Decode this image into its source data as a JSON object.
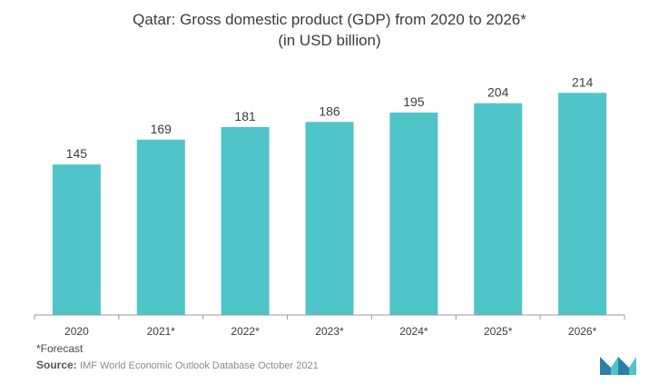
{
  "chart_data": {
    "type": "bar",
    "title": "Qatar: Gross domestic product (GDP) from 2020 to 2026*",
    "subtitle": "(in USD billion)",
    "categories": [
      "2020",
      "2021*",
      "2022*",
      "2023*",
      "2024*",
      "2025*",
      "2026*"
    ],
    "values": [
      145,
      169,
      181,
      186,
      195,
      204,
      214
    ],
    "data_labels": [
      "145",
      "169",
      "181",
      "186",
      "195",
      "204",
      "214"
    ],
    "ylim": [
      0,
      230
    ],
    "grid": false,
    "legend": "none",
    "colors": {
      "bar": "#4fc4c9",
      "axis": "#9a9a9a",
      "label": "#3b3b3b"
    }
  },
  "footnote": "*Forecast",
  "source": {
    "label": "Source:",
    "text": "IMF World Economic Outlook Database October 2021"
  },
  "logo": {
    "icon": "mordor-intelligence-logo",
    "colors": [
      "#2a7fa6",
      "#4fc4c9"
    ]
  }
}
